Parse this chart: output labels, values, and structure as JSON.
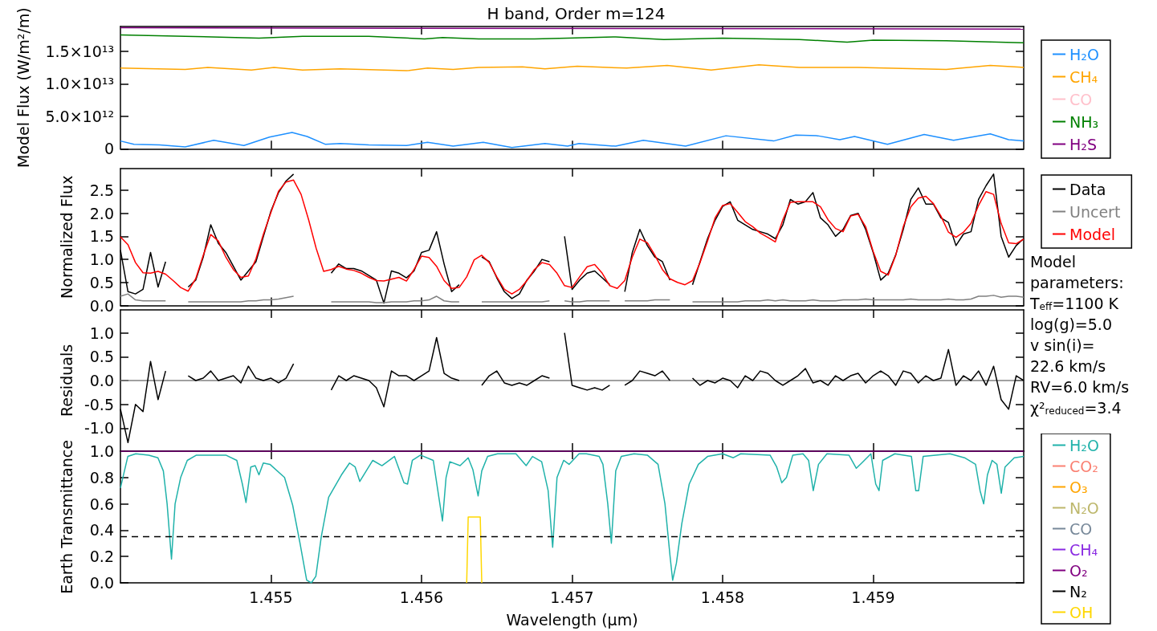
{
  "chart_data": [
    {
      "type": "line",
      "title": "H band, Order m=124",
      "ylabel": "Model Flux (W/m²/m)",
      "xlim": [
        1.454,
        1.46
      ],
      "xticks": [
        1.455,
        1.456,
        1.457,
        1.458,
        1.459
      ],
      "ylim": [
        0,
        18800000000000.0
      ],
      "yticks": [
        0,
        {
          "value": 5000000000000.0,
          "label": "5.0×10¹²"
        },
        {
          "value": 10000000000000.0,
          "label": "1.0×10¹³"
        },
        {
          "value": 15000000000000.0,
          "label": "1.5×10¹³"
        }
      ],
      "tick_labels": "y",
      "legend": "right",
      "series": [
        {
          "name": "H₂O",
          "color": "#1e90ff",
          "x": [
            1.454,
            1.45409,
            1.45426,
            1.45443,
            1.45462,
            1.45482,
            1.45499,
            1.45514,
            1.45524,
            1.45536,
            1.45546,
            1.45565,
            1.4559,
            1.45604,
            1.45621,
            1.45641,
            1.4566,
            1.45682,
            1.45697,
            1.457046,
            1.45729,
            1.457473,
            1.457754,
            1.458022,
            1.458339,
            1.458485,
            1.458632,
            1.458778,
            1.458876,
            1.459095,
            1.459339,
            1.459534,
            1.459778,
            1.4599,
            1.46
          ],
          "values": [
            1200000000000.0,
            700000000000.0,
            600000000000.0,
            300000000000.0,
            1300000000000.0,
            500000000000.0,
            1800000000000.0,
            2500000000000.0,
            1900000000000.0,
            700000000000.0,
            800000000000.0,
            600000000000.0,
            500000000000.0,
            1000000000000.0,
            400000000000.0,
            1000000000000.0,
            200000000000.0,
            800000000000.0,
            400000000000.0,
            800000000000.0,
            400000000000.0,
            1300000000000.0,
            400000000000.0,
            2000000000000.0,
            1200000000000.0,
            2100000000000.0,
            2000000000000.0,
            1400000000000.0,
            1900000000000.0,
            700000000000.0,
            2200000000000.0,
            1300000000000.0,
            2300000000000.0,
            1400000000000.0,
            1200000000000.0
          ]
        },
        {
          "name": "CH₄",
          "color": "#ffa500",
          "x": [
            1.454,
            1.45443,
            1.45458,
            1.45487,
            1.45502,
            1.45521,
            1.45546,
            1.4559,
            1.45604,
            1.45621,
            1.45638,
            1.45667,
            1.45682,
            1.457034,
            1.457363,
            1.457632,
            1.457924,
            1.458241,
            1.45851,
            1.4589,
            1.459485,
            1.459778,
            1.46
          ],
          "values": [
            12400000000000.0,
            12200000000000.0,
            12500000000000.0,
            12100000000000.0,
            12500000000000.0,
            12100000000000.0,
            12300000000000.0,
            12000000000000.0,
            12400000000000.0,
            12200000000000.0,
            12500000000000.0,
            12600000000000.0,
            12300000000000.0,
            12700000000000.0,
            12400000000000.0,
            12800000000000.0,
            12100000000000.0,
            12900000000000.0,
            12500000000000.0,
            12500000000000.0,
            12200000000000.0,
            12800000000000.0,
            12500000000000.0
          ]
        },
        {
          "name": "CO",
          "color": "#ffc0cb"
        },
        {
          "name": "NH₃",
          "color": "#008000",
          "x": [
            1.454,
            1.45443,
            1.45492,
            1.45521,
            1.45565,
            1.45602,
            1.45614,
            1.45638,
            1.45675,
            1.45697,
            1.45729,
            1.45761,
            1.458,
            1.45851,
            1.458827,
            1.459,
            1.459485,
            1.46
          ],
          "values": [
            17500000000000.0,
            17300000000000.0,
            17000000000000.0,
            17300000000000.0,
            17300000000000.0,
            16900000000000.0,
            17100000000000.0,
            16900000000000.0,
            16900000000000.0,
            17000000000000.0,
            17200000000000.0,
            16800000000000.0,
            17000000000000.0,
            16800000000000.0,
            16400000000000.0,
            16700000000000.0,
            16600000000000.0,
            16300000000000.0
          ]
        },
        {
          "name": "H₂S",
          "color": "#800080",
          "x": [
            1.454,
            1.46
          ],
          "values": [
            18600000000000.0,
            18400000000000.0
          ]
        }
      ]
    },
    {
      "type": "line",
      "ylabel": "Normalized Flux",
      "xlim": [
        1.454,
        1.46
      ],
      "xticks": [
        1.455,
        1.456,
        1.457,
        1.458,
        1.459
      ],
      "ylim": [
        0,
        2.97
      ],
      "yticks": [
        {
          "value": 0,
          "label": "0.0"
        },
        {
          "value": 0.5,
          "label": "0.5"
        },
        {
          "value": 1,
          "label": "1.0"
        },
        {
          "value": 1.5,
          "label": "1.5"
        },
        {
          "value": 2,
          "label": "2.0"
        },
        {
          "value": 2.5,
          "label": "2.5"
        }
      ],
      "tick_labels": "y",
      "legend": "right",
      "x": [
        1.454,
        1.45405,
        1.4541,
        1.45415,
        1.4542,
        1.45425,
        1.4543,
        1.45435,
        1.4544,
        1.45445,
        1.4545,
        1.45455,
        1.4546,
        1.45465,
        1.4547,
        1.45475,
        1.4548,
        1.45485,
        1.4549,
        1.45495,
        1.455,
        1.45505,
        1.4551,
        1.45515,
        1.4552,
        1.45525,
        1.4553,
        1.45535,
        1.4554,
        1.45545,
        1.4555,
        1.45555,
        1.4556,
        1.45565,
        1.4557,
        1.45575,
        1.4558,
        1.45585,
        1.4559,
        1.45595,
        1.456,
        1.45605,
        1.4561,
        1.45615,
        1.4562,
        1.45625,
        1.4563,
        1.45635,
        1.4564,
        1.45645,
        1.4565,
        1.45655,
        1.4566,
        1.45665,
        1.4567,
        1.45675,
        1.4568,
        1.45685,
        1.4569,
        1.45695,
        1.457,
        1.45705,
        1.4571,
        1.45715,
        1.4572,
        1.45725,
        1.4573,
        1.45735,
        1.4574,
        1.45745,
        1.4575,
        1.45755,
        1.4576,
        1.45765,
        1.4577,
        1.45775,
        1.4578,
        1.45785,
        1.4579,
        1.45795,
        1.458,
        1.45805,
        1.4581,
        1.45815,
        1.4582,
        1.45825,
        1.4583,
        1.45835,
        1.4584,
        1.45845,
        1.4585,
        1.45855,
        1.4586,
        1.45865,
        1.4587,
        1.45875,
        1.4588,
        1.45885,
        1.4589,
        1.45895,
        1.459,
        1.45905,
        1.4591,
        1.45915,
        1.4592,
        1.45925,
        1.4593,
        1.45935,
        1.4594,
        1.45945,
        1.4595,
        1.45955,
        1.4596,
        1.45965,
        1.4597,
        1.45975,
        1.4598,
        1.45985,
        1.4599,
        1.45995,
        1.46
      ],
      "series": [
        {
          "name": "Data",
          "color": "#000000",
          "values": [
            1.2,
            0.3,
            0.25,
            0.35,
            1.15,
            0.4,
            0.95,
            null,
            null,
            0.4,
            0.55,
            1.05,
            1.75,
            1.35,
            1.15,
            0.85,
            0.55,
            0.75,
            0.95,
            1.5,
            2.05,
            2.45,
            2.7,
            2.85,
            null,
            null,
            null,
            null,
            0.7,
            0.9,
            0.8,
            0.8,
            0.75,
            0.65,
            0.55,
            0.05,
            0.75,
            0.7,
            0.6,
            0.75,
            1.15,
            1.2,
            1.6,
            0.9,
            0.3,
            0.45,
            null,
            null,
            1.05,
            0.95,
            0.6,
            0.3,
            0.15,
            0.25,
            0.55,
            0.75,
            1.0,
            0.95,
            null,
            1.5,
            0.35,
            0.55,
            0.7,
            0.75,
            0.6,
            0.45,
            null,
            0.3,
            1.15,
            1.65,
            1.3,
            1.05,
            0.95,
            0.55,
            null,
            null,
            0.45,
            0.95,
            1.45,
            1.85,
            2.15,
            2.25,
            1.85,
            1.75,
            1.65,
            1.6,
            1.55,
            1.45,
            1.75,
            2.3,
            2.2,
            2.25,
            2.45,
            1.9,
            1.75,
            1.5,
            1.65,
            1.95,
            2.0,
            1.65,
            1.15,
            0.55,
            0.7,
            1.1,
            1.65,
            2.3,
            2.55,
            2.2,
            2.2,
            1.9,
            1.8,
            1.3,
            1.55,
            1.6,
            2.3,
            2.6,
            2.85,
            1.5,
            1.05,
            1.3,
            1.45
          ]
        },
        {
          "name": "Uncert",
          "color": "#808080",
          "values": [
            0.2,
            0.25,
            0.12,
            0.1,
            0.1,
            0.1,
            0.1,
            null,
            null,
            0.08,
            0.08,
            0.08,
            0.08,
            0.08,
            0.08,
            0.08,
            0.08,
            0.1,
            0.1,
            0.12,
            0.12,
            0.14,
            0.17,
            0.2,
            null,
            null,
            null,
            null,
            0.08,
            0.08,
            0.08,
            0.08,
            0.08,
            0.08,
            0.06,
            0.06,
            0.08,
            0.08,
            0.08,
            0.1,
            0.1,
            0.12,
            0.2,
            0.1,
            0.08,
            0.08,
            null,
            null,
            0.08,
            0.08,
            0.08,
            0.08,
            0.08,
            0.08,
            0.08,
            0.08,
            0.08,
            0.1,
            null,
            0.1,
            0.08,
            0.08,
            0.1,
            0.1,
            0.1,
            0.1,
            null,
            0.1,
            0.1,
            0.1,
            0.1,
            0.12,
            0.12,
            0.12,
            null,
            null,
            0.08,
            0.08,
            0.08,
            0.08,
            0.08,
            0.08,
            0.08,
            0.1,
            0.1,
            0.1,
            0.12,
            0.1,
            0.12,
            0.1,
            0.1,
            0.1,
            0.12,
            0.1,
            0.1,
            0.1,
            0.12,
            0.12,
            0.12,
            0.14,
            0.12,
            0.12,
            0.12,
            0.12,
            0.12,
            0.14,
            0.12,
            0.12,
            0.12,
            0.12,
            0.14,
            0.12,
            0.12,
            0.14,
            0.2,
            0.2,
            0.22,
            0.18,
            0.2,
            0.2,
            0.18
          ]
        },
        {
          "name": "Model",
          "color": "#ff0000",
          "values": [
            1.49,
            1.32,
            0.93,
            0.71,
            0.7,
            0.74,
            0.68,
            0.54,
            0.39,
            0.31,
            0.58,
            1.09,
            1.54,
            1.4,
            1.05,
            0.78,
            0.61,
            0.64,
            1.01,
            1.55,
            2.02,
            2.48,
            2.68,
            2.72,
            2.41,
            1.86,
            1.24,
            0.74,
            0.78,
            0.85,
            0.79,
            0.76,
            0.7,
            0.61,
            0.54,
            0.53,
            0.57,
            0.61,
            0.53,
            0.78,
            1.07,
            1.04,
            0.85,
            0.54,
            0.37,
            0.39,
            0.62,
            0.99,
            1.09,
            0.93,
            0.62,
            0.35,
            0.25,
            0.35,
            0.54,
            0.78,
            0.93,
            0.89,
            0.7,
            0.43,
            0.39,
            0.62,
            0.84,
            0.89,
            0.7,
            0.43,
            0.37,
            0.54,
            1.05,
            1.44,
            1.36,
            1.09,
            0.78,
            0.58,
            0.5,
            0.45,
            0.54,
            0.93,
            1.4,
            1.9,
            2.17,
            2.21,
            2.02,
            1.82,
            1.71,
            1.57,
            1.48,
            1.38,
            1.86,
            2.24,
            2.25,
            2.25,
            2.25,
            2.14,
            1.86,
            1.67,
            1.6,
            1.94,
            1.98,
            1.71,
            1.17,
            0.74,
            0.66,
            1.09,
            1.71,
            2.14,
            2.33,
            2.37,
            2.21,
            1.94,
            1.59,
            1.48,
            1.59,
            1.78,
            2.17,
            2.47,
            2.41,
            1.78,
            1.36,
            1.34,
            1.44
          ]
        }
      ]
    },
    {
      "type": "line",
      "ylabel": "Residuals",
      "xlim": [
        1.454,
        1.46
      ],
      "xticks": [
        1.455,
        1.456,
        1.457,
        1.458,
        1.459
      ],
      "ylim": [
        -1.48,
        1.48
      ],
      "yticks": [
        {
          "value": -1,
          "label": "-1.0"
        },
        {
          "value": -0.5,
          "label": "-0.5"
        },
        {
          "value": 0,
          "label": "0.0"
        },
        {
          "value": 0.5,
          "label": "0.5"
        },
        {
          "value": 1,
          "label": "1.0"
        }
      ],
      "tick_labels": "y",
      "ref_lines": [
        {
          "axis": "y",
          "value": 0,
          "color": "#808080",
          "line_style": "solid"
        }
      ],
      "annotations": [
        "Model",
        "parameters:",
        "T$_{eff}$=1100 K",
        "log(g)=5.0",
        "v sin(i)=",
        "22.6 km/s",
        "RV=6.0 km/s",
        "χ²$_{reduced}$=3.4"
      ],
      "x": [
        1.454,
        1.45405,
        1.4541,
        1.45415,
        1.4542,
        1.45425,
        1.4543,
        1.45435,
        1.4544,
        1.45445,
        1.4545,
        1.45455,
        1.4546,
        1.45465,
        1.4547,
        1.45475,
        1.4548,
        1.45485,
        1.4549,
        1.45495,
        1.455,
        1.45505,
        1.4551,
        1.45515,
        1.4552,
        1.45525,
        1.4553,
        1.45535,
        1.4554,
        1.45545,
        1.4555,
        1.45555,
        1.4556,
        1.45565,
        1.4557,
        1.45575,
        1.4558,
        1.45585,
        1.4559,
        1.45595,
        1.456,
        1.45605,
        1.4561,
        1.45615,
        1.4562,
        1.45625,
        1.4563,
        1.45635,
        1.4564,
        1.45645,
        1.4565,
        1.45655,
        1.4566,
        1.45665,
        1.4567,
        1.45675,
        1.4568,
        1.45685,
        1.4569,
        1.45695,
        1.457,
        1.45705,
        1.4571,
        1.45715,
        1.4572,
        1.45725,
        1.4573,
        1.45735,
        1.4574,
        1.45745,
        1.4575,
        1.45755,
        1.4576,
        1.45765,
        1.4577,
        1.45775,
        1.4578,
        1.45785,
        1.4579,
        1.45795,
        1.458,
        1.45805,
        1.4581,
        1.45815,
        1.4582,
        1.45825,
        1.4583,
        1.45835,
        1.4584,
        1.45845,
        1.4585,
        1.45855,
        1.4586,
        1.45865,
        1.4587,
        1.45875,
        1.4588,
        1.45885,
        1.4589,
        1.45895,
        1.459,
        1.45905,
        1.4591,
        1.45915,
        1.4592,
        1.45925,
        1.4593,
        1.45935,
        1.4594,
        1.45945,
        1.4595,
        1.45955,
        1.4596,
        1.45965,
        1.4597,
        1.45975,
        1.4598,
        1.45985,
        1.4599,
        1.45995,
        1.46
      ],
      "series": [
        {
          "color": "#000000",
          "values": [
            -0.6,
            -1.3,
            -0.5,
            -0.65,
            0.4,
            -0.4,
            0.2,
            null,
            null,
            0.1,
            0.0,
            0.05,
            0.2,
            0.0,
            0.05,
            0.1,
            -0.05,
            0.3,
            0.05,
            0.0,
            0.05,
            -0.05,
            0.05,
            0.35,
            null,
            null,
            null,
            null,
            -0.2,
            0.1,
            0.0,
            0.1,
            0.05,
            0.0,
            -0.15,
            -0.55,
            0.2,
            0.1,
            0.1,
            0.0,
            0.1,
            0.2,
            0.9,
            0.15,
            0.05,
            0.0,
            null,
            null,
            -0.1,
            0.1,
            0.2,
            -0.05,
            -0.1,
            -0.05,
            -0.1,
            0.0,
            0.1,
            0.05,
            null,
            1.0,
            -0.1,
            -0.15,
            -0.2,
            -0.15,
            -0.2,
            -0.1,
            null,
            -0.1,
            0.0,
            0.2,
            0.15,
            0.1,
            0.2,
            0.0,
            null,
            null,
            0.05,
            -0.1,
            0.0,
            -0.05,
            0.05,
            0.0,
            -0.15,
            0.1,
            0.0,
            0.2,
            0.15,
            0.0,
            -0.1,
            0.0,
            0.1,
            0.25,
            -0.05,
            0.0,
            -0.1,
            0.1,
            0.0,
            0.1,
            0.15,
            -0.05,
            0.1,
            0.2,
            0.1,
            -0.1,
            0.2,
            0.15,
            -0.05,
            0.1,
            0.0,
            0.05,
            0.65,
            -0.1,
            0.1,
            0.0,
            0.2,
            -0.1,
            0.3,
            -0.4,
            -0.6,
            0.1,
            0.0
          ]
        }
      ]
    },
    {
      "type": "line",
      "ylabel": "Earth Transmittance",
      "xlabel": "Wavelength (μm)",
      "xlim": [
        1.454,
        1.46
      ],
      "xticks": [
        1.455,
        1.456,
        1.457,
        1.458,
        1.459
      ],
      "ylim": [
        0,
        1
      ],
      "yticks": [
        {
          "value": 0,
          "label": "0.0"
        },
        {
          "value": 0.2,
          "label": "0.2"
        },
        {
          "value": 0.4,
          "label": "0.4"
        },
        {
          "value": 0.6,
          "label": "0.6"
        },
        {
          "value": 0.8,
          "label": "0.8"
        },
        {
          "value": 1,
          "label": "1.0"
        }
      ],
      "legend": "right",
      "ref_lines": [
        {
          "axis": "y",
          "value": 0.35,
          "color": "#000000",
          "line_style": "dashed"
        }
      ],
      "series": [
        {
          "name": "H₂O",
          "color": "#20b2aa",
          "x": [
            1.454,
            1.454049,
            1.454102,
            1.454188,
            1.454249,
            1.454285,
            1.45431,
            1.454339,
            1.454363,
            1.4544,
            1.454444,
            1.454505,
            1.4547,
            1.454773,
            1.45481,
            1.454834,
            1.454866,
            1.454895,
            1.45492,
            1.454949,
            1.454993,
            1.45509,
            1.455144,
            1.455193,
            1.455237,
            1.455268,
            1.455298,
            1.455334,
            1.455383,
            1.455468,
            1.455522,
            1.455559,
            1.45559,
            1.455676,
            1.455737,
            1.45582,
            1.455883,
            1.455907,
            1.455939,
            1.455993,
            1.456078,
            1.456115,
            1.456139,
            1.456163,
            1.456188,
            1.456256,
            1.45631,
            1.456341,
            1.456376,
            1.4564,
            1.456439,
            1.456505,
            1.456627,
            1.456695,
            1.456737,
            1.456798,
            1.456841,
            1.456871,
            1.4569,
            1.456944,
            1.45698,
            1.457046,
            1.457095,
            1.45718,
            1.457205,
            1.457237,
            1.457261,
            1.45729,
            1.457327,
            1.457412,
            1.4575,
            1.457571,
            1.457617,
            1.457651,
            1.457668,
            1.457693,
            1.457729,
            1.457778,
            1.457839,
            1.4579,
            1.458,
            1.458071,
            1.45812,
            1.458315,
            1.458359,
            1.458393,
            1.458424,
            1.458466,
            1.458534,
            1.458571,
            1.458602,
            1.458637,
            1.458693,
            1.458839,
            1.458888,
            1.458924,
            1.458985,
            1.459017,
            1.459039,
            1.459063,
            1.459144,
            1.459254,
            1.459283,
            1.459302,
            1.459332,
            1.45951,
            1.459607,
            1.45968,
            1.45971,
            1.459734,
            1.459759,
            1.45979,
            1.459822,
            1.459851,
            1.459876,
            1.459937,
            1.46
          ],
          "values": [
            0.72,
            0.96,
            0.98,
            0.97,
            0.95,
            0.85,
            0.6,
            0.18,
            0.6,
            0.8,
            0.93,
            0.97,
            0.97,
            0.93,
            0.75,
            0.61,
            0.88,
            0.89,
            0.82,
            0.91,
            0.9,
            0.8,
            0.59,
            0.3,
            0.02,
            0.0,
            0.05,
            0.35,
            0.65,
            0.82,
            0.91,
            0.88,
            0.77,
            0.93,
            0.89,
            0.96,
            0.76,
            0.75,
            0.93,
            0.97,
            0.93,
            0.65,
            0.47,
            0.8,
            0.92,
            0.89,
            0.95,
            0.86,
            0.66,
            0.85,
            0.96,
            0.98,
            0.98,
            0.89,
            0.96,
            0.92,
            0.7,
            0.27,
            0.8,
            0.93,
            0.9,
            0.98,
            0.98,
            0.96,
            0.9,
            0.6,
            0.3,
            0.85,
            0.96,
            0.98,
            0.97,
            0.9,
            0.6,
            0.2,
            0.02,
            0.15,
            0.45,
            0.75,
            0.9,
            0.96,
            0.98,
            0.95,
            0.98,
            0.97,
            0.88,
            0.76,
            0.8,
            0.97,
            0.98,
            0.93,
            0.7,
            0.9,
            0.98,
            0.97,
            0.87,
            0.91,
            0.98,
            0.75,
            0.7,
            0.93,
            0.98,
            0.96,
            0.7,
            0.7,
            0.96,
            0.98,
            0.95,
            0.9,
            0.7,
            0.6,
            0.82,
            0.93,
            0.9,
            0.68,
            0.88,
            0.95,
            0.96
          ]
        },
        {
          "name": "CO₂",
          "color": "#fa8072"
        },
        {
          "name": "O₃",
          "color": "#ffa500"
        },
        {
          "name": "N₂O",
          "color": "#bdb76b"
        },
        {
          "name": "CO",
          "color": "#778899"
        },
        {
          "name": "CH₄",
          "color": "#8a2be2"
        },
        {
          "name": "O₂",
          "color": "#800080",
          "x": [
            1.454,
            1.46
          ],
          "values": [
            1,
            1
          ]
        },
        {
          "name": "N₂",
          "color": "#000000"
        },
        {
          "name": "OH",
          "color": "#ffd700",
          "x": [
            1.4563,
            1.45631,
            1.45639,
            1.4564
          ],
          "values": [
            0,
            0.5,
            0.5,
            0
          ]
        }
      ]
    }
  ]
}
